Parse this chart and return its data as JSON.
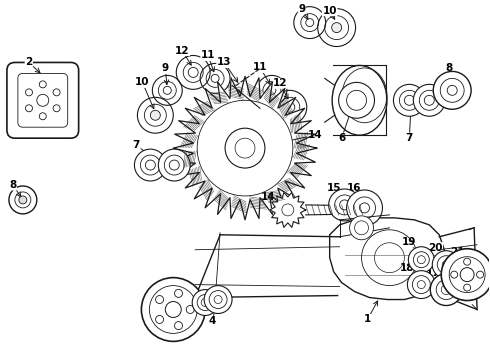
{
  "bg": "#ffffff",
  "lc": "#1a1a1a",
  "lw": 0.8,
  "fw": 4.9,
  "fh": 3.6,
  "dpi": 100
}
